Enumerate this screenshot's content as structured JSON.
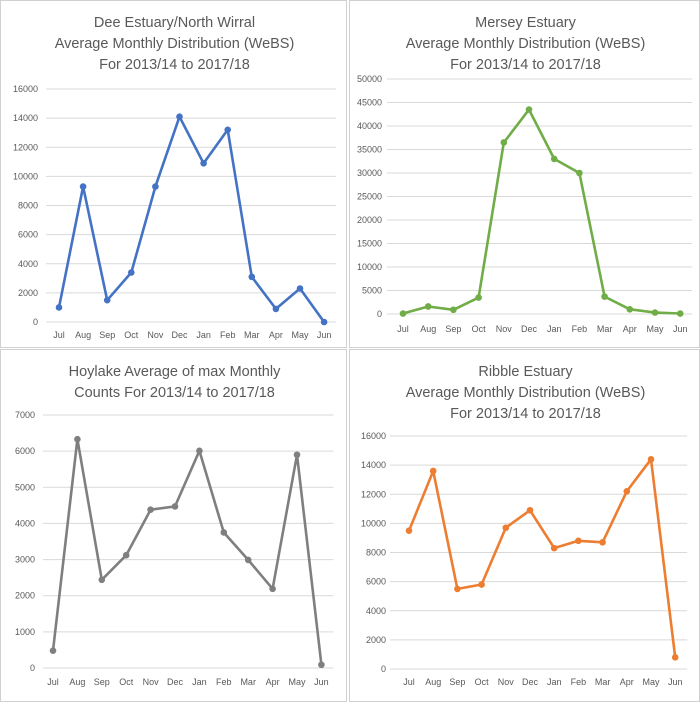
{
  "chart_data": [
    {
      "type": "line",
      "title": [
        "Dee Estuary/North Wirral",
        "Average Monthly Distribution (WeBS)",
        "For 2013/14 to 2017/18"
      ],
      "categories": [
        "Jul",
        "Aug",
        "Sep",
        "Oct",
        "Nov",
        "Dec",
        "Jan",
        "Feb",
        "Mar",
        "Apr",
        "May",
        "Jun"
      ],
      "values": [
        1000,
        9300,
        1500,
        3400,
        9300,
        14100,
        10900,
        13200,
        3100,
        900,
        2300,
        0
      ],
      "ylim": [
        0,
        16000
      ],
      "yticks": [
        0,
        2000,
        4000,
        6000,
        8000,
        10000,
        12000,
        14000,
        16000
      ],
      "xlabel": "",
      "ylabel": "",
      "grid": true,
      "color": "#4472c4"
    },
    {
      "type": "line",
      "title": [
        "Mersey Estuary",
        "Average Monthly Distribution (WeBS)",
        "For 2013/14 to 2017/18"
      ],
      "categories": [
        "Jul",
        "Aug",
        "Sep",
        "Oct",
        "Nov",
        "Dec",
        "Jan",
        "Feb",
        "Mar",
        "Apr",
        "May",
        "Jun"
      ],
      "values": [
        100,
        1600,
        900,
        3500,
        36500,
        43500,
        33000,
        30000,
        3700,
        1000,
        300,
        100
      ],
      "ylim": [
        0,
        50000
      ],
      "yticks": [
        0,
        5000,
        10000,
        15000,
        20000,
        25000,
        30000,
        35000,
        40000,
        45000,
        50000
      ],
      "xlabel": "",
      "ylabel": "",
      "grid": true,
      "color": "#70ad47"
    },
    {
      "type": "line",
      "title": [
        "Hoylake Average of max Monthly",
        "Counts For 2013/14 to 2017/18"
      ],
      "categories": [
        "Jul",
        "Aug",
        "Sep",
        "Oct",
        "Nov",
        "Dec",
        "Jan",
        "Feb",
        "Mar",
        "Apr",
        "May",
        "Jun"
      ],
      "values": [
        480,
        6330,
        2440,
        3120,
        4380,
        4470,
        6010,
        3750,
        2990,
        2190,
        5900,
        90
      ],
      "ylim": [
        0,
        7000
      ],
      "yticks": [
        0,
        1000,
        2000,
        3000,
        4000,
        5000,
        6000,
        7000
      ],
      "xlabel": "",
      "ylabel": "",
      "grid": true,
      "color": "#7f7f7f"
    },
    {
      "type": "line",
      "title": [
        "Ribble Estuary",
        "Average Monthly Distribution (WeBS)",
        "For 2013/14 to 2017/18"
      ],
      "categories": [
        "Jul",
        "Aug",
        "Sep",
        "Oct",
        "Nov",
        "Dec",
        "Jan",
        "Feb",
        "Mar",
        "Apr",
        "May",
        "Jun"
      ],
      "values": [
        9500,
        13600,
        5500,
        5800,
        9700,
        10900,
        8300,
        8800,
        8700,
        12200,
        14400,
        800
      ],
      "ylim": [
        0,
        16000
      ],
      "yticks": [
        0,
        2000,
        4000,
        6000,
        8000,
        10000,
        12000,
        14000,
        16000
      ],
      "xlabel": "",
      "ylabel": "",
      "grid": true,
      "color": "#ed7d31"
    }
  ]
}
